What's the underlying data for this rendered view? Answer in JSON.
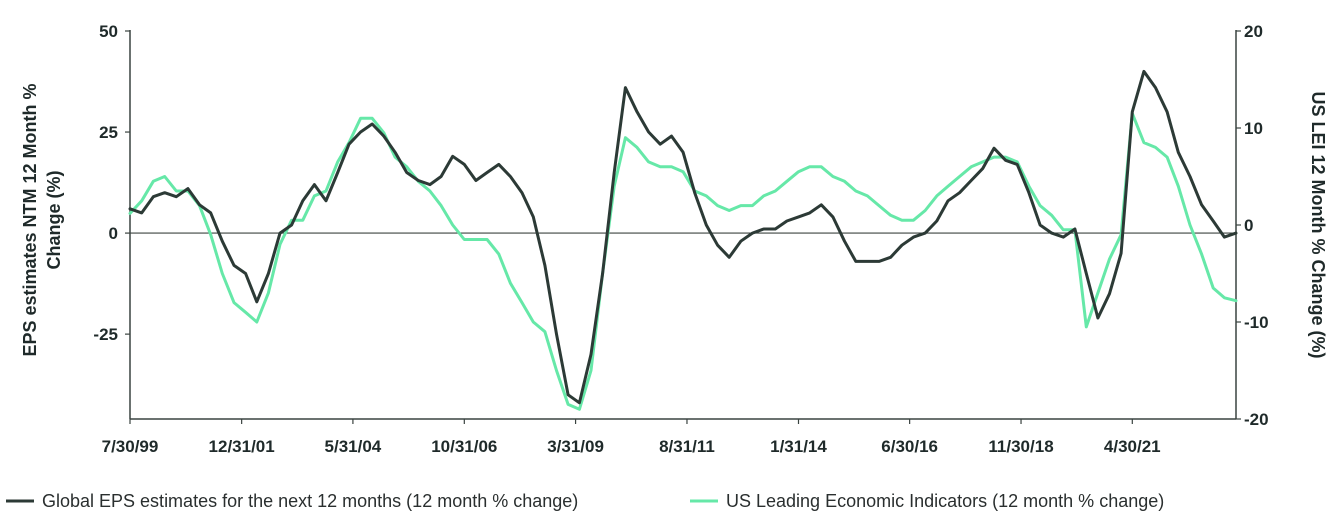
{
  "chart_data": {
    "type": "line",
    "ylabel_left": "EPS estimates NTM 12 Month % Change (%)",
    "ylabel_right": "US LEI 12 Month % Change (%)",
    "x_range": [
      "1999-07-30",
      "2023-07-31"
    ],
    "ylim_left": [
      -46,
      50
    ],
    "ylim_right": [
      -20,
      20
    ],
    "yticks_left": [
      50,
      25,
      0,
      -25
    ],
    "yticks_left_labels": [
      "50",
      "25",
      "0",
      "-25"
    ],
    "yticks_right": [
      20,
      10,
      0,
      -10,
      -20
    ],
    "yticks_right_labels": [
      "20",
      "10",
      "0",
      "-10",
      "-20"
    ],
    "xticks": [
      {
        "date": "1999-07-30",
        "label": "7/30/99"
      },
      {
        "date": "2001-12-31",
        "label": "12/31/01"
      },
      {
        "date": "2004-05-31",
        "label": "5/31/04"
      },
      {
        "date": "2006-10-31",
        "label": "10/31/06"
      },
      {
        "date": "2009-03-31",
        "label": "3/31/09"
      },
      {
        "date": "2011-08-31",
        "label": "8/31/11"
      },
      {
        "date": "2014-01-31",
        "label": "1/31/14"
      },
      {
        "date": "2016-06-30",
        "label": "6/30/16"
      },
      {
        "date": "2018-11-30",
        "label": "11/30/18"
      },
      {
        "date": "2021-04-30",
        "label": "4/30/21"
      }
    ],
    "grid": false,
    "legend_position": "bottom",
    "series": [
      {
        "name": "Global EPS estimates for the next 12 months (12 month % change)",
        "axis": "left",
        "color": "#2c3a36",
        "points": [
          [
            "1999-07-30",
            6
          ],
          [
            "1999-10-31",
            5
          ],
          [
            "2000-01-31",
            9
          ],
          [
            "2000-04-30",
            10
          ],
          [
            "2000-07-31",
            9
          ],
          [
            "2000-10-31",
            11
          ],
          [
            "2001-01-31",
            7
          ],
          [
            "2001-04-30",
            5
          ],
          [
            "2001-07-31",
            -2
          ],
          [
            "2001-10-31",
            -8
          ],
          [
            "2002-01-31",
            -10
          ],
          [
            "2002-04-30",
            -17
          ],
          [
            "2002-07-31",
            -10
          ],
          [
            "2002-10-31",
            0
          ],
          [
            "2003-01-31",
            2
          ],
          [
            "2003-04-30",
            8
          ],
          [
            "2003-07-31",
            12
          ],
          [
            "2003-10-31",
            8
          ],
          [
            "2004-01-31",
            15
          ],
          [
            "2004-04-30",
            22
          ],
          [
            "2004-07-31",
            25
          ],
          [
            "2004-10-31",
            27
          ],
          [
            "2005-01-31",
            24
          ],
          [
            "2005-04-30",
            20
          ],
          [
            "2005-07-31",
            15
          ],
          [
            "2005-10-31",
            13
          ],
          [
            "2006-01-31",
            12
          ],
          [
            "2006-04-30",
            14
          ],
          [
            "2006-07-31",
            19
          ],
          [
            "2006-10-31",
            17
          ],
          [
            "2007-01-31",
            13
          ],
          [
            "2007-04-30",
            15
          ],
          [
            "2007-07-31",
            17
          ],
          [
            "2007-10-31",
            14
          ],
          [
            "2008-01-31",
            10
          ],
          [
            "2008-04-30",
            4
          ],
          [
            "2008-07-31",
            -8
          ],
          [
            "2008-10-31",
            -25
          ],
          [
            "2009-01-31",
            -40
          ],
          [
            "2009-04-30",
            -42
          ],
          [
            "2009-07-31",
            -30
          ],
          [
            "2009-10-31",
            -10
          ],
          [
            "2010-01-31",
            15
          ],
          [
            "2010-04-30",
            36
          ],
          [
            "2010-07-31",
            30
          ],
          [
            "2010-10-31",
            25
          ],
          [
            "2011-01-31",
            22
          ],
          [
            "2011-04-30",
            24
          ],
          [
            "2011-07-31",
            20
          ],
          [
            "2011-10-31",
            10
          ],
          [
            "2012-01-31",
            2
          ],
          [
            "2012-04-30",
            -3
          ],
          [
            "2012-07-31",
            -6
          ],
          [
            "2012-10-31",
            -2
          ],
          [
            "2013-01-31",
            0
          ],
          [
            "2013-04-30",
            1
          ],
          [
            "2013-07-31",
            1
          ],
          [
            "2013-10-31",
            3
          ],
          [
            "2014-01-31",
            4
          ],
          [
            "2014-04-30",
            5
          ],
          [
            "2014-07-31",
            7
          ],
          [
            "2014-10-31",
            4
          ],
          [
            "2015-01-31",
            -2
          ],
          [
            "2015-04-30",
            -7
          ],
          [
            "2015-07-31",
            -7
          ],
          [
            "2015-10-31",
            -7
          ],
          [
            "2016-01-31",
            -6
          ],
          [
            "2016-04-30",
            -3
          ],
          [
            "2016-07-31",
            -1
          ],
          [
            "2016-10-31",
            0
          ],
          [
            "2017-01-31",
            3
          ],
          [
            "2017-04-30",
            8
          ],
          [
            "2017-07-31",
            10
          ],
          [
            "2017-10-31",
            13
          ],
          [
            "2018-01-31",
            16
          ],
          [
            "2018-04-30",
            21
          ],
          [
            "2018-07-31",
            18
          ],
          [
            "2018-10-31",
            17
          ],
          [
            "2019-01-31",
            10
          ],
          [
            "2019-04-30",
            2
          ],
          [
            "2019-07-31",
            0
          ],
          [
            "2019-10-31",
            -1
          ],
          [
            "2020-01-31",
            1
          ],
          [
            "2020-04-30",
            -10
          ],
          [
            "2020-07-31",
            -21
          ],
          [
            "2020-10-31",
            -15
          ],
          [
            "2021-01-31",
            -5
          ],
          [
            "2021-04-30",
            30
          ],
          [
            "2021-07-31",
            40
          ],
          [
            "2021-10-31",
            36
          ],
          [
            "2022-01-31",
            30
          ],
          [
            "2022-04-30",
            20
          ],
          [
            "2022-07-31",
            14
          ],
          [
            "2022-10-31",
            7
          ],
          [
            "2023-01-31",
            3
          ],
          [
            "2023-04-30",
            -1
          ],
          [
            "2023-07-31",
            0
          ]
        ]
      },
      {
        "name": "US Leading Economic Indicators (12 month % change)",
        "axis": "right",
        "color": "#66e8a8",
        "points": [
          [
            "1999-07-30",
            1.2
          ],
          [
            "1999-10-31",
            2.5
          ],
          [
            "2000-01-31",
            4.5
          ],
          [
            "2000-04-30",
            5
          ],
          [
            "2000-07-31",
            3.5
          ],
          [
            "2000-10-31",
            3.5
          ],
          [
            "2001-01-31",
            2
          ],
          [
            "2001-04-30",
            -1
          ],
          [
            "2001-07-31",
            -5
          ],
          [
            "2001-10-31",
            -8
          ],
          [
            "2002-01-31",
            -9
          ],
          [
            "2002-04-30",
            -10
          ],
          [
            "2002-07-31",
            -7
          ],
          [
            "2002-10-31",
            -2
          ],
          [
            "2003-01-31",
            0.5
          ],
          [
            "2003-04-30",
            0.5
          ],
          [
            "2003-07-31",
            3
          ],
          [
            "2003-10-31",
            3.5
          ],
          [
            "2004-01-31",
            6.5
          ],
          [
            "2004-04-30",
            8.5
          ],
          [
            "2004-07-31",
            11
          ],
          [
            "2004-10-31",
            11
          ],
          [
            "2005-01-31",
            9.5
          ],
          [
            "2005-04-30",
            7
          ],
          [
            "2005-07-31",
            6
          ],
          [
            "2005-10-31",
            4.5
          ],
          [
            "2006-01-31",
            3.5
          ],
          [
            "2006-04-30",
            2
          ],
          [
            "2006-07-31",
            0
          ],
          [
            "2006-10-31",
            -1.5
          ],
          [
            "2007-01-31",
            -1.5
          ],
          [
            "2007-04-30",
            -1.5
          ],
          [
            "2007-07-31",
            -3
          ],
          [
            "2007-10-31",
            -6
          ],
          [
            "2008-01-31",
            -8
          ],
          [
            "2008-04-30",
            -10
          ],
          [
            "2008-07-31",
            -11
          ],
          [
            "2008-10-31",
            -15
          ],
          [
            "2009-01-31",
            -18.5
          ],
          [
            "2009-04-30",
            -19
          ],
          [
            "2009-07-31",
            -15
          ],
          [
            "2009-10-31",
            -5
          ],
          [
            "2010-01-31",
            4
          ],
          [
            "2010-04-30",
            9
          ],
          [
            "2010-07-31",
            8
          ],
          [
            "2010-10-31",
            6.5
          ],
          [
            "2011-01-31",
            6
          ],
          [
            "2011-04-30",
            6
          ],
          [
            "2011-07-31",
            5.5
          ],
          [
            "2011-10-31",
            3.5
          ],
          [
            "2012-01-31",
            3
          ],
          [
            "2012-04-30",
            2
          ],
          [
            "2012-07-31",
            1.5
          ],
          [
            "2012-10-31",
            2
          ],
          [
            "2013-01-31",
            2
          ],
          [
            "2013-04-30",
            3
          ],
          [
            "2013-07-31",
            3.5
          ],
          [
            "2013-10-31",
            4.5
          ],
          [
            "2014-01-31",
            5.5
          ],
          [
            "2014-04-30",
            6
          ],
          [
            "2014-07-31",
            6
          ],
          [
            "2014-10-31",
            5
          ],
          [
            "2015-01-31",
            4.5
          ],
          [
            "2015-04-30",
            3.5
          ],
          [
            "2015-07-31",
            3
          ],
          [
            "2015-10-31",
            2
          ],
          [
            "2016-01-31",
            1
          ],
          [
            "2016-04-30",
            0.5
          ],
          [
            "2016-07-31",
            0.5
          ],
          [
            "2016-10-31",
            1.5
          ],
          [
            "2017-01-31",
            3
          ],
          [
            "2017-04-30",
            4
          ],
          [
            "2017-07-31",
            5
          ],
          [
            "2017-10-31",
            6
          ],
          [
            "2018-01-31",
            6.5
          ],
          [
            "2018-04-30",
            7
          ],
          [
            "2018-07-31",
            7
          ],
          [
            "2018-10-31",
            6.5
          ],
          [
            "2019-01-31",
            4
          ],
          [
            "2019-04-30",
            2
          ],
          [
            "2019-07-31",
            1
          ],
          [
            "2019-10-31",
            -0.5
          ],
          [
            "2020-01-31",
            -0.5
          ],
          [
            "2020-04-30",
            -10.5
          ],
          [
            "2020-07-31",
            -7
          ],
          [
            "2020-10-31",
            -3.5
          ],
          [
            "2021-01-31",
            -1
          ],
          [
            "2021-04-30",
            11.5
          ],
          [
            "2021-07-31",
            8.5
          ],
          [
            "2021-10-31",
            8
          ],
          [
            "2022-01-31",
            7
          ],
          [
            "2022-04-30",
            4
          ],
          [
            "2022-07-31",
            0
          ],
          [
            "2022-10-31",
            -3
          ],
          [
            "2023-01-31",
            -6.5
          ],
          [
            "2023-04-30",
            -7.5
          ],
          [
            "2023-07-31",
            -7.8
          ]
        ]
      }
    ]
  }
}
